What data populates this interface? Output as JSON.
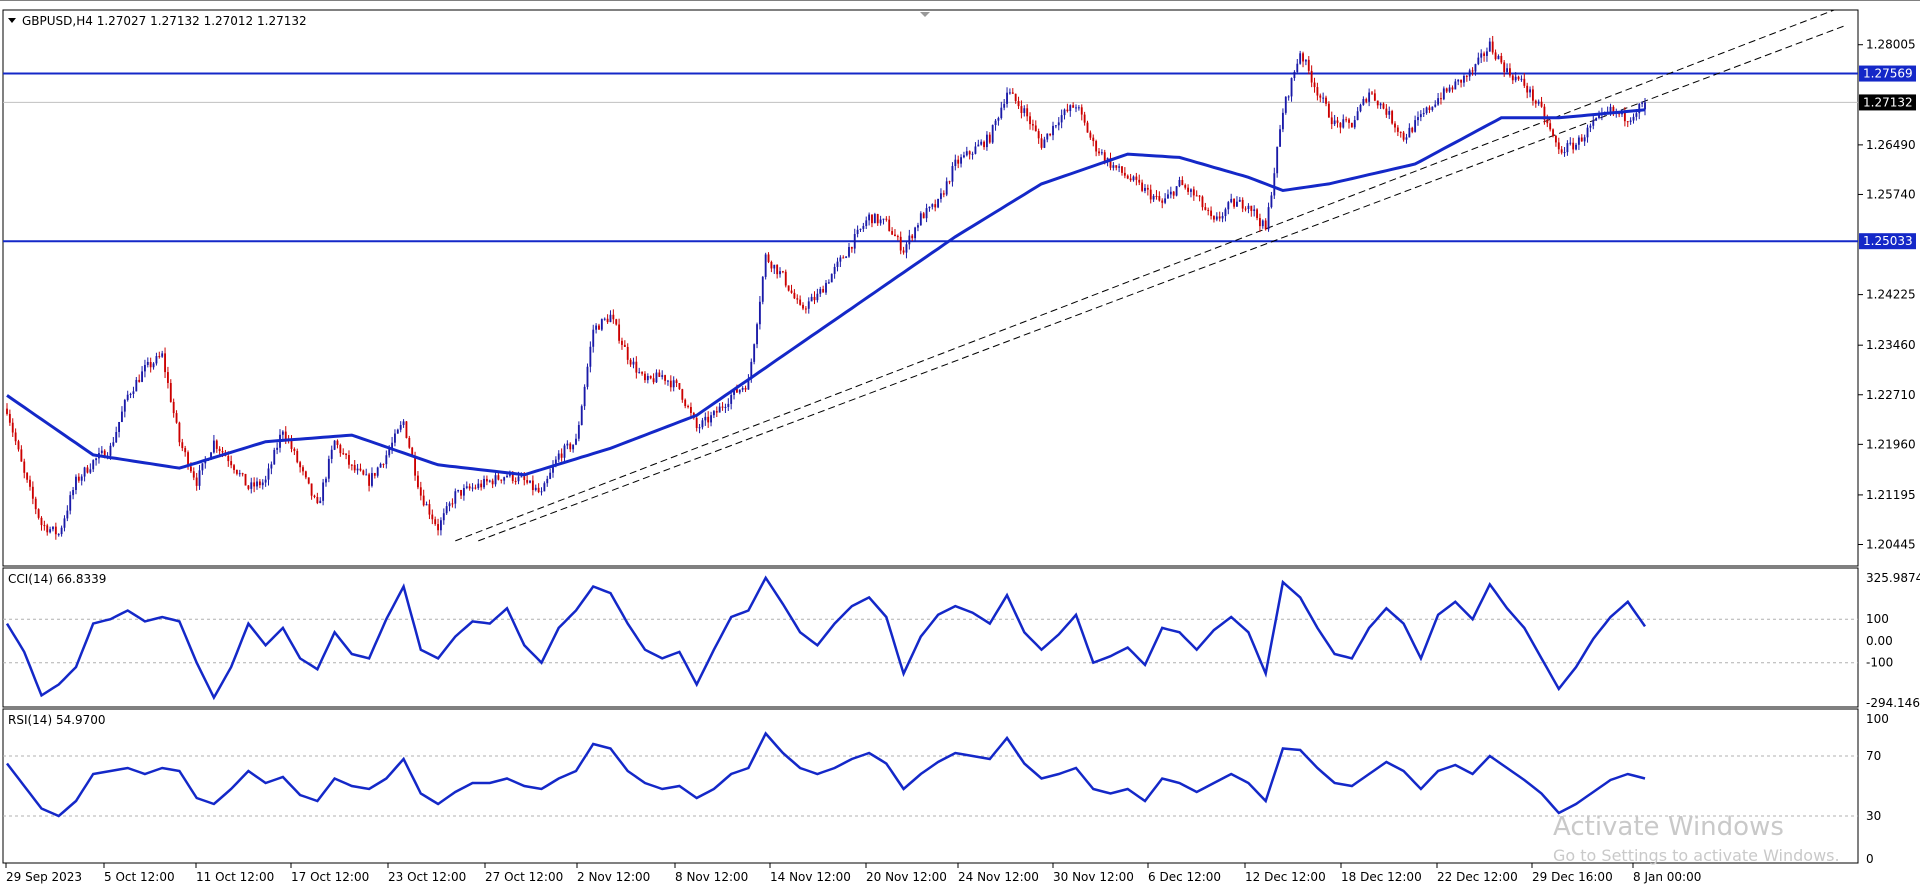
{
  "watermark": {
    "title": "Activate Windows",
    "subtitle": "Go to Settings to activate Windows."
  },
  "colors": {
    "bull": "#1a1aa8",
    "bear": "#cc0000",
    "ma": "#1428c8",
    "osc": "#1428c8",
    "level": "#1428c8",
    "trend": "#000000",
    "bg": "#ffffff"
  },
  "chart_data": [
    {
      "type": "candlestick",
      "header": "GBPUSD,H4  1.27027 1.27132 1.27012 1.27132",
      "symbol": "GBPUSD",
      "timeframe": "H4",
      "ohlc": {
        "open": 1.27027,
        "high": 1.27132,
        "low": 1.27012,
        "close": 1.27132
      },
      "ylim": [
        1.2015,
        1.285
      ],
      "y_ticks": [
        "1.28005",
        "1.26490",
        "1.25740",
        "1.24225",
        "1.23460",
        "1.22710",
        "1.21960",
        "1.21195",
        "1.20445"
      ],
      "x_ticks": [
        "29 Sep 2023",
        "5 Oct 12:00",
        "11 Oct 12:00",
        "17 Oct 12:00",
        "23 Oct 12:00",
        "27 Oct 12:00",
        "2 Nov 12:00",
        "8 Nov 12:00",
        "14 Nov 12:00",
        "20 Nov 12:00",
        "24 Nov 12:00",
        "30 Nov 12:00",
        "6 Dec 12:00",
        "12 Dec 12:00",
        "18 Dec 12:00",
        "22 Dec 12:00",
        "29 Dec 16:00",
        "8 Jan 00:00"
      ],
      "levels": [
        {
          "label": "1.27569",
          "value": 1.27569
        },
        {
          "label": "1.25033",
          "value": 1.25033
        }
      ],
      "current_price": {
        "label": "1.27132",
        "value": 1.27132
      },
      "close_path": [
        [
          0,
          1.225
        ],
        [
          6,
          1.215
        ],
        [
          12,
          1.2075
        ],
        [
          18,
          1.206
        ],
        [
          24,
          1.214
        ],
        [
          30,
          1.217
        ],
        [
          36,
          1.219
        ],
        [
          42,
          1.227
        ],
        [
          48,
          1.231
        ],
        [
          54,
          1.233
        ],
        [
          60,
          1.22
        ],
        [
          66,
          1.214
        ],
        [
          72,
          1.22
        ],
        [
          78,
          1.217
        ],
        [
          84,
          1.213
        ],
        [
          90,
          1.214
        ],
        [
          96,
          1.222
        ],
        [
          102,
          1.216
        ],
        [
          108,
          1.21
        ],
        [
          114,
          1.22
        ],
        [
          120,
          1.216
        ],
        [
          126,
          1.214
        ],
        [
          132,
          1.218
        ],
        [
          138,
          1.223
        ],
        [
          144,
          1.212
        ],
        [
          150,
          1.207
        ],
        [
          156,
          1.212
        ],
        [
          162,
          1.213
        ],
        [
          168,
          1.214
        ],
        [
          174,
          1.215
        ],
        [
          180,
          1.214
        ],
        [
          186,
          1.212
        ],
        [
          192,
          1.218
        ],
        [
          198,
          1.22
        ],
        [
          204,
          1.237
        ],
        [
          210,
          1.239
        ],
        [
          216,
          1.233
        ],
        [
          222,
          1.229
        ],
        [
          228,
          1.23
        ],
        [
          234,
          1.228
        ],
        [
          240,
          1.222
        ],
        [
          246,
          1.224
        ],
        [
          252,
          1.227
        ],
        [
          258,
          1.229
        ],
        [
          264,
          1.248
        ],
        [
          270,
          1.245
        ],
        [
          276,
          1.24
        ],
        [
          282,
          1.242
        ],
        [
          288,
          1.246
        ],
        [
          294,
          1.25
        ],
        [
          300,
          1.254
        ],
        [
          306,
          1.253
        ],
        [
          312,
          1.249
        ],
        [
          318,
          1.254
        ],
        [
          324,
          1.256
        ],
        [
          330,
          1.262
        ],
        [
          336,
          1.264
        ],
        [
          342,
          1.266
        ],
        [
          348,
          1.273
        ],
        [
          354,
          1.27
        ],
        [
          360,
          1.265
        ],
        [
          366,
          1.269
        ],
        [
          372,
          1.271
        ],
        [
          378,
          1.265
        ],
        [
          384,
          1.262
        ],
        [
          390,
          1.26
        ],
        [
          396,
          1.258
        ],
        [
          402,
          1.256
        ],
        [
          408,
          1.259
        ],
        [
          414,
          1.257
        ],
        [
          420,
          1.253
        ],
        [
          426,
          1.256
        ],
        [
          432,
          1.256
        ],
        [
          438,
          1.252
        ],
        [
          444,
          1.27
        ],
        [
          450,
          1.279
        ],
        [
          456,
          1.273
        ],
        [
          462,
          1.268
        ],
        [
          468,
          1.268
        ],
        [
          474,
          1.273
        ],
        [
          480,
          1.27
        ],
        [
          486,
          1.266
        ],
        [
          492,
          1.269
        ],
        [
          498,
          1.272
        ],
        [
          504,
          1.274
        ],
        [
          510,
          1.276
        ],
        [
          516,
          1.28
        ],
        [
          522,
          1.276
        ],
        [
          528,
          1.274
        ],
        [
          534,
          1.27
        ],
        [
          540,
          1.264
        ],
        [
          546,
          1.265
        ],
        [
          552,
          1.268
        ],
        [
          558,
          1.27
        ],
        [
          564,
          1.269
        ],
        [
          570,
          1.2713
        ]
      ],
      "moving_average": [
        [
          0,
          1.227
        ],
        [
          30,
          1.218
        ],
        [
          60,
          1.216
        ],
        [
          90,
          1.22
        ],
        [
          120,
          1.221
        ],
        [
          150,
          1.2165
        ],
        [
          180,
          1.215
        ],
        [
          210,
          1.219
        ],
        [
          240,
          1.224
        ],
        [
          270,
          1.233
        ],
        [
          300,
          1.242
        ],
        [
          330,
          1.251
        ],
        [
          360,
          1.259
        ],
        [
          390,
          1.2635
        ],
        [
          408,
          1.263
        ],
        [
          432,
          1.26
        ],
        [
          444,
          1.258
        ],
        [
          460,
          1.259
        ],
        [
          490,
          1.262
        ],
        [
          520,
          1.269
        ],
        [
          540,
          1.269
        ],
        [
          570,
          1.2702
        ]
      ],
      "trend_lines": [
        {
          "from": [
            156,
            1.205
          ],
          "to": [
            640,
            1.286
          ]
        },
        {
          "from": [
            164,
            1.205
          ],
          "to": [
            640,
            1.283
          ]
        }
      ],
      "n_bars": 571
    },
    {
      "type": "line",
      "header": "CCI(14) 66.8339",
      "name": "CCI(14)",
      "last_value": 66.8339,
      "ylim": [
        -294.1461,
        325.9874
      ],
      "y_ticks": [
        "325.9874",
        "100",
        "0.00",
        "-100",
        "-294.1461"
      ],
      "reference_lines": [
        100,
        -100
      ],
      "points": [
        [
          0,
          80
        ],
        [
          6,
          -50
        ],
        [
          12,
          -250
        ],
        [
          18,
          -200
        ],
        [
          24,
          -120
        ],
        [
          30,
          80
        ],
        [
          36,
          100
        ],
        [
          42,
          140
        ],
        [
          48,
          90
        ],
        [
          54,
          110
        ],
        [
          60,
          90
        ],
        [
          66,
          -100
        ],
        [
          72,
          -260
        ],
        [
          78,
          -120
        ],
        [
          84,
          80
        ],
        [
          90,
          -20
        ],
        [
          96,
          60
        ],
        [
          102,
          -80
        ],
        [
          108,
          -130
        ],
        [
          114,
          40
        ],
        [
          120,
          -60
        ],
        [
          126,
          -80
        ],
        [
          132,
          100
        ],
        [
          138,
          250
        ],
        [
          144,
          -40
        ],
        [
          150,
          -80
        ],
        [
          156,
          20
        ],
        [
          162,
          90
        ],
        [
          168,
          80
        ],
        [
          174,
          150
        ],
        [
          180,
          -20
        ],
        [
          186,
          -100
        ],
        [
          192,
          60
        ],
        [
          198,
          140
        ],
        [
          204,
          250
        ],
        [
          210,
          220
        ],
        [
          216,
          80
        ],
        [
          222,
          -40
        ],
        [
          228,
          -80
        ],
        [
          234,
          -50
        ],
        [
          240,
          -200
        ],
        [
          246,
          -40
        ],
        [
          252,
          110
        ],
        [
          258,
          140
        ],
        [
          264,
          290
        ],
        [
          270,
          170
        ],
        [
          276,
          40
        ],
        [
          282,
          -20
        ],
        [
          288,
          80
        ],
        [
          294,
          160
        ],
        [
          300,
          200
        ],
        [
          306,
          110
        ],
        [
          312,
          -150
        ],
        [
          318,
          20
        ],
        [
          324,
          120
        ],
        [
          330,
          160
        ],
        [
          336,
          130
        ],
        [
          342,
          80
        ],
        [
          348,
          210
        ],
        [
          354,
          40
        ],
        [
          360,
          -40
        ],
        [
          366,
          30
        ],
        [
          372,
          120
        ],
        [
          378,
          -100
        ],
        [
          384,
          -70
        ],
        [
          390,
          -30
        ],
        [
          396,
          -110
        ],
        [
          402,
          60
        ],
        [
          408,
          40
        ],
        [
          414,
          -40
        ],
        [
          420,
          50
        ],
        [
          426,
          110
        ],
        [
          432,
          40
        ],
        [
          438,
          -150
        ],
        [
          444,
          270
        ],
        [
          450,
          200
        ],
        [
          456,
          60
        ],
        [
          462,
          -60
        ],
        [
          468,
          -80
        ],
        [
          474,
          60
        ],
        [
          480,
          150
        ],
        [
          486,
          80
        ],
        [
          492,
          -80
        ],
        [
          498,
          120
        ],
        [
          504,
          180
        ],
        [
          510,
          100
        ],
        [
          516,
          260
        ],
        [
          522,
          150
        ],
        [
          528,
          60
        ],
        [
          534,
          -80
        ],
        [
          540,
          -220
        ],
        [
          546,
          -120
        ],
        [
          552,
          10
        ],
        [
          558,
          110
        ],
        [
          564,
          180
        ],
        [
          570,
          67
        ]
      ]
    },
    {
      "type": "line",
      "header": "RSI(14) 54.9700",
      "name": "RSI(14)",
      "last_value": 54.97,
      "ylim": [
        0,
        100
      ],
      "y_ticks": [
        "100",
        "70",
        "30",
        "0"
      ],
      "reference_lines": [
        70,
        30
      ],
      "points": [
        [
          0,
          65
        ],
        [
          6,
          50
        ],
        [
          12,
          35
        ],
        [
          18,
          30
        ],
        [
          24,
          40
        ],
        [
          30,
          58
        ],
        [
          36,
          60
        ],
        [
          42,
          62
        ],
        [
          48,
          58
        ],
        [
          54,
          62
        ],
        [
          60,
          60
        ],
        [
          66,
          42
        ],
        [
          72,
          38
        ],
        [
          78,
          48
        ],
        [
          84,
          60
        ],
        [
          90,
          52
        ],
        [
          96,
          56
        ],
        [
          102,
          44
        ],
        [
          108,
          40
        ],
        [
          114,
          55
        ],
        [
          120,
          50
        ],
        [
          126,
          48
        ],
        [
          132,
          55
        ],
        [
          138,
          68
        ],
        [
          144,
          45
        ],
        [
          150,
          38
        ],
        [
          156,
          46
        ],
        [
          162,
          52
        ],
        [
          168,
          52
        ],
        [
          174,
          55
        ],
        [
          180,
          50
        ],
        [
          186,
          48
        ],
        [
          192,
          55
        ],
        [
          198,
          60
        ],
        [
          204,
          78
        ],
        [
          210,
          75
        ],
        [
          216,
          60
        ],
        [
          222,
          52
        ],
        [
          228,
          48
        ],
        [
          234,
          50
        ],
        [
          240,
          42
        ],
        [
          246,
          48
        ],
        [
          252,
          58
        ],
        [
          258,
          62
        ],
        [
          264,
          85
        ],
        [
          270,
          72
        ],
        [
          276,
          62
        ],
        [
          282,
          58
        ],
        [
          288,
          62
        ],
        [
          294,
          68
        ],
        [
          300,
          72
        ],
        [
          306,
          65
        ],
        [
          312,
          48
        ],
        [
          318,
          58
        ],
        [
          324,
          66
        ],
        [
          330,
          72
        ],
        [
          336,
          70
        ],
        [
          342,
          68
        ],
        [
          348,
          82
        ],
        [
          354,
          65
        ],
        [
          360,
          55
        ],
        [
          366,
          58
        ],
        [
          372,
          62
        ],
        [
          378,
          48
        ],
        [
          384,
          45
        ],
        [
          390,
          48
        ],
        [
          396,
          40
        ],
        [
          402,
          55
        ],
        [
          408,
          52
        ],
        [
          414,
          46
        ],
        [
          420,
          52
        ],
        [
          426,
          58
        ],
        [
          432,
          52
        ],
        [
          438,
          40
        ],
        [
          444,
          75
        ],
        [
          450,
          74
        ],
        [
          456,
          62
        ],
        [
          462,
          52
        ],
        [
          468,
          50
        ],
        [
          474,
          58
        ],
        [
          480,
          66
        ],
        [
          486,
          60
        ],
        [
          492,
          48
        ],
        [
          498,
          60
        ],
        [
          504,
          64
        ],
        [
          510,
          58
        ],
        [
          516,
          70
        ],
        [
          522,
          62
        ],
        [
          528,
          54
        ],
        [
          534,
          45
        ],
        [
          540,
          32
        ],
        [
          546,
          38
        ],
        [
          552,
          46
        ],
        [
          558,
          54
        ],
        [
          564,
          58
        ],
        [
          570,
          55
        ]
      ]
    }
  ]
}
